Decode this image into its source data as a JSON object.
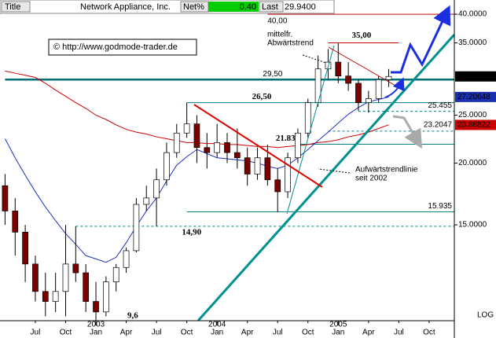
{
  "header": {
    "label": "Title",
    "name": "Network Appliance, Inc.",
    "net_label": "Net%",
    "net": "0.40",
    "last_label": "Last",
    "last": "29.9400"
  },
  "chart_data": {
    "type": "candlestick",
    "log": true,
    "scale_label": "LOG",
    "x": [
      "2002-04",
      "2002-05",
      "2002-06",
      "2002-07",
      "2002-08",
      "2002-09",
      "2002-10",
      "2002-11",
      "2002-12",
      "2003-01",
      "2003-02",
      "2003-03",
      "2003-04",
      "2003-05",
      "2003-06",
      "2003-07",
      "2003-08",
      "2003-09",
      "2003-10",
      "2003-11",
      "2003-12",
      "2004-01",
      "2004-02",
      "2004-03",
      "2004-04",
      "2004-05",
      "2004-06",
      "2004-07",
      "2004-08",
      "2004-09",
      "2004-10",
      "2004-11",
      "2004-12",
      "2005-01",
      "2005-02",
      "2005-03",
      "2005-04",
      "2005-05",
      "2005-06"
    ],
    "open": [
      18,
      16,
      14.5,
      12.5,
      11,
      10.5,
      11,
      12.5,
      12,
      10.5,
      10,
      11.5,
      12.3,
      13.3,
      16.5,
      17,
      18.5,
      21,
      23,
      24,
      21.5,
      21,
      22,
      21,
      20.5,
      19,
      20.5,
      18.5,
      17.5,
      20.5,
      23,
      26.5,
      31,
      32,
      30,
      29,
      26.5,
      27,
      29.5
    ],
    "high": [
      19,
      17,
      15,
      13,
      12,
      12,
      15,
      14.9,
      12.5,
      11.5,
      11.8,
      12.5,
      13.5,
      17,
      18,
      19.5,
      22,
      24,
      26.5,
      25,
      23,
      24,
      23,
      23.5,
      21.5,
      21.5,
      21.8,
      19.5,
      21,
      23.5,
      27,
      33,
      34,
      35,
      32,
      29.5,
      28,
      30,
      31
    ],
    "low": [
      15,
      13,
      11.5,
      10.5,
      9.8,
      10,
      9.8,
      11.5,
      10,
      9.6,
      9.8,
      11,
      12,
      13.2,
      16,
      14.9,
      18,
      20.5,
      22.5,
      20,
      19.5,
      20.5,
      20,
      19.5,
      18,
      18.5,
      18,
      15.9,
      17,
      20,
      22.5,
      26,
      29.5,
      29,
      28,
      25.5,
      25.3,
      26.5,
      28.5
    ],
    "close": [
      16,
      14.5,
      12.5,
      11,
      10.5,
      11,
      12.5,
      12,
      10.5,
      10,
      11.5,
      12.3,
      13.3,
      16.5,
      17,
      18.5,
      21,
      23,
      24,
      21.5,
      21,
      22,
      21,
      20.5,
      19,
      20.5,
      18.5,
      17.5,
      20.5,
      23,
      26.5,
      31,
      32,
      30,
      29,
      26.5,
      27,
      29.5,
      29.94
    ],
    "up_color": "#ffffff",
    "down_color": "#7a0000",
    "moving_averages": [
      {
        "color": "#cc0000",
        "values": [
          30.7,
          30.4,
          30.1,
          29.8,
          29.0,
          28.1,
          27.3,
          26.5,
          25.8,
          25.0,
          24.5,
          23.9,
          23.4,
          23.1,
          22.9,
          22.6,
          22.4,
          22.2,
          22.0,
          22.0,
          21.9,
          21.9,
          21.8,
          21.8,
          21.7,
          21.6,
          21.6,
          21.5,
          21.6,
          21.7,
          21.8,
          22.0,
          22.1,
          22.3,
          22.6,
          22.8,
          23.1,
          23.5,
          23.9
        ]
      },
      {
        "color": "#2030c0",
        "values": [
          22.4,
          20.5,
          18.9,
          17.5,
          16.3,
          15.3,
          14.4,
          13.7,
          13.0,
          12.8,
          12.6,
          12.9,
          13.8,
          14.9,
          16.0,
          17.0,
          18.4,
          19.8,
          20.6,
          21.3,
          20.9,
          20.5,
          20.4,
          20.3,
          20.2,
          20.0,
          19.7,
          19.5,
          19.8,
          20.5,
          21.3,
          22.2,
          23.1,
          24.1,
          25.1,
          25.9,
          26.6,
          26.9,
          27.2
        ]
      }
    ],
    "xlim": [
      "2002-04",
      "2005-12"
    ],
    "xticks": [
      {
        "value": "2002-07",
        "label": "Jul"
      },
      {
        "value": "2002-10",
        "label": "Oct"
      },
      {
        "value": "2003-01",
        "label": "Jan"
      },
      {
        "value": "2003-04",
        "label": "Apr"
      },
      {
        "value": "2003-07",
        "label": "Jul"
      },
      {
        "value": "2003-10",
        "label": "Oct"
      },
      {
        "value": "2004-01",
        "label": "Jan"
      },
      {
        "value": "2004-04",
        "label": "Apr"
      },
      {
        "value": "2004-07",
        "label": "Jul"
      },
      {
        "value": "2004-10",
        "label": "Oct"
      },
      {
        "value": "2005-01",
        "label": "Jan"
      },
      {
        "value": "2005-04",
        "label": "Apr"
      },
      {
        "value": "2005-07",
        "label": "Jul"
      },
      {
        "value": "2005-10",
        "label": "Oct"
      }
    ],
    "year_ticks": [
      {
        "value": "2003-01",
        "label": "2003"
      },
      {
        "value": "2004-01",
        "label": "2004"
      },
      {
        "value": "2005-01",
        "label": "2005"
      }
    ],
    "ylim": [
      9.6,
      41.2
    ],
    "yticks": [
      {
        "value": 40,
        "label": "40.0000"
      },
      {
        "value": 35,
        "label": "35.0000"
      },
      {
        "value": 25,
        "label": "25.0000"
      },
      {
        "value": 20,
        "label": "20.0000"
      },
      {
        "value": 15,
        "label": "15.0000"
      }
    ],
    "last_values": [
      {
        "value": 29.94,
        "label": "29.9400",
        "color": "#000000"
      },
      {
        "value": 27.20648,
        "label": "27.20648",
        "color": "#1a2fb0"
      },
      {
        "value": 23.88822,
        "label": "23.88822",
        "color": "#cc0000"
      }
    ],
    "levels": [
      {
        "value": 40,
        "label": "40,00",
        "color": "#cc0000",
        "from": "2004-06"
      },
      {
        "value": 35,
        "label": "35,00",
        "color": "#cc0000",
        "from": "2004-12",
        "to": "2005-07"
      },
      {
        "value": 29.5,
        "label": "29,50",
        "color": "#007070",
        "from": "2002-04"
      },
      {
        "value": 26.5,
        "label": "26,50",
        "color": "#008080",
        "from": "2003-10"
      },
      {
        "value": 25.455,
        "label": "25.455",
        "color": "#008080",
        "from": "2005-03",
        "dashed": true
      },
      {
        "value": 23.2047,
        "label": "23.2047",
        "color": "#008080",
        "from": "2004-12",
        "dashed": true
      },
      {
        "value": 21.83,
        "label": "21.83",
        "color": "#008080",
        "from": "2004-09"
      },
      {
        "value": 15.935,
        "label": "15.935",
        "color": "#008080",
        "from": "2003-10"
      },
      {
        "value": 14.9,
        "label": "14,90",
        "color": "#008080",
        "from": "2002-11",
        "dashed": true
      }
    ],
    "low_label": {
      "value": 9.6,
      "label": "9,6"
    },
    "annotations": [
      [
        "mittelfr.",
        "Abwärtstrend"
      ],
      [
        "Aufwärtstrendlinie",
        "seit 2002"
      ]
    ],
    "copyright": "© http://www.godmode-trader.de"
  }
}
